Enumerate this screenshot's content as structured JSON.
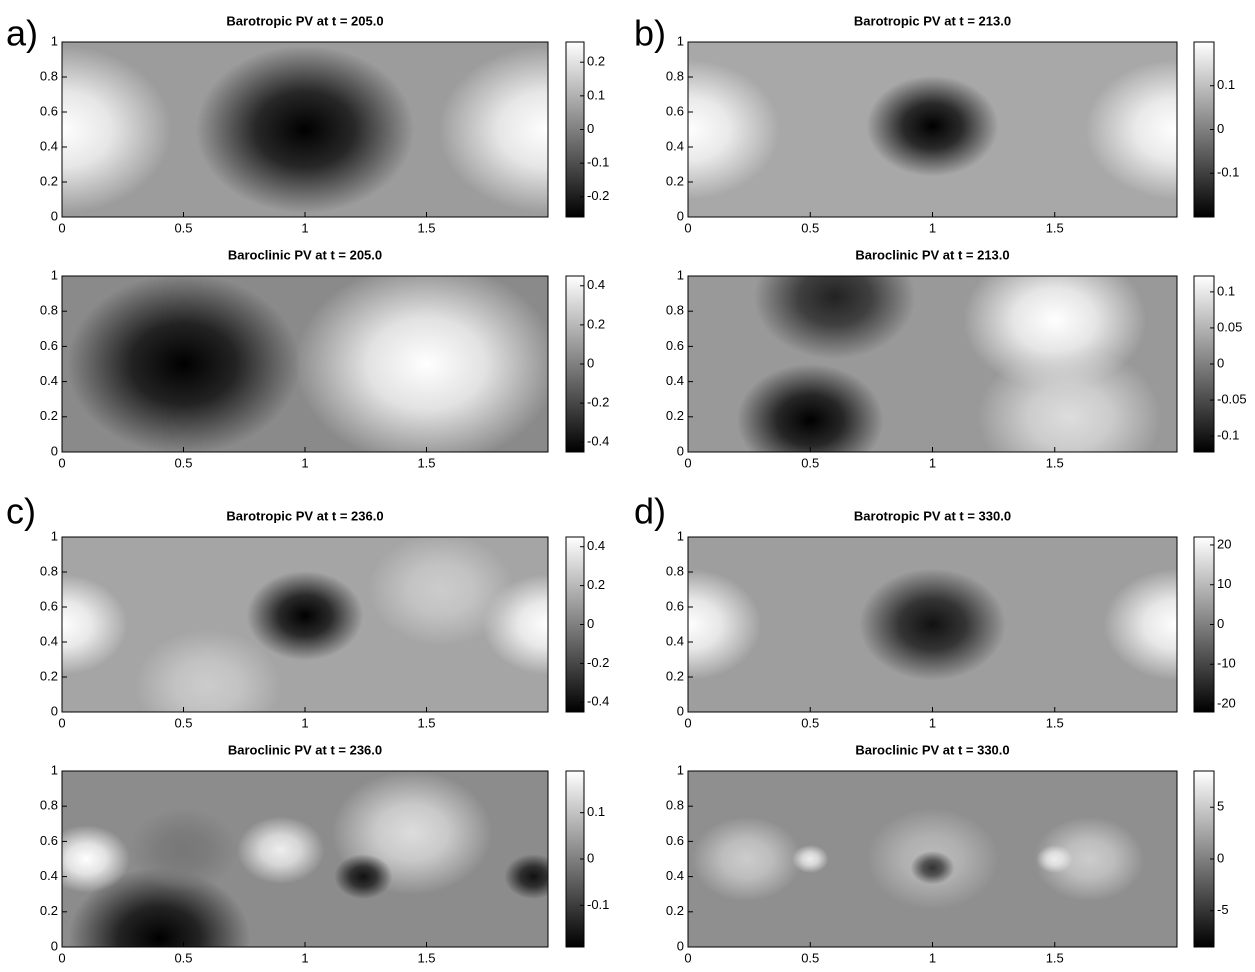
{
  "panel_labels": [
    "a)",
    "b)",
    "c)",
    "d)"
  ],
  "chart_data": [
    {
      "type": "heatmap",
      "title": "Barotropic PV at t = 205.0",
      "xlim": [
        0,
        2
      ],
      "ylim": [
        0,
        1
      ],
      "xticks": [
        0,
        0.5,
        1,
        1.5
      ],
      "yticks": [
        0,
        0.2,
        0.4,
        0.6,
        0.8,
        1
      ],
      "clim": [
        -0.26,
        0.26
      ],
      "cticks": [
        0.2,
        0.1,
        0,
        -0.1,
        -0.2
      ]
    },
    {
      "type": "heatmap",
      "title": "Baroclinic PV at t = 205.0",
      "xlim": [
        0,
        2
      ],
      "ylim": [
        0,
        1
      ],
      "xticks": [
        0,
        0.5,
        1,
        1.5
      ],
      "yticks": [
        0,
        0.2,
        0.4,
        0.6,
        0.8,
        1
      ],
      "clim": [
        -0.45,
        0.45
      ],
      "cticks": [
        0.4,
        0.2,
        0,
        -0.2,
        -0.4
      ]
    },
    {
      "type": "heatmap",
      "title": "Barotropic PV at t = 213.0",
      "xlim": [
        0,
        2
      ],
      "ylim": [
        0,
        1
      ],
      "xticks": [
        0,
        0.5,
        1,
        1.5
      ],
      "yticks": [
        0,
        0.2,
        0.4,
        0.6,
        0.8,
        1
      ],
      "clim": [
        -0.2,
        0.2
      ],
      "cticks": [
        0.1,
        0,
        -0.1
      ]
    },
    {
      "type": "heatmap",
      "title": "Baroclinic PV at t = 213.0",
      "xlim": [
        0,
        2
      ],
      "ylim": [
        0,
        1
      ],
      "xticks": [
        0,
        0.5,
        1,
        1.5
      ],
      "yticks": [
        0,
        0.2,
        0.4,
        0.6,
        0.8,
        1
      ],
      "clim": [
        -0.122,
        0.122
      ],
      "cticks": [
        0.1,
        0.05,
        0,
        -0.05,
        -0.1
      ]
    },
    {
      "type": "heatmap",
      "title": "Barotropic PV at t = 236.0",
      "xlim": [
        0,
        2
      ],
      "ylim": [
        0,
        1
      ],
      "xticks": [
        0,
        0.5,
        1,
        1.5
      ],
      "yticks": [
        0,
        0.2,
        0.4,
        0.6,
        0.8,
        1
      ],
      "clim": [
        -0.45,
        0.45
      ],
      "cticks": [
        0.4,
        0.2,
        0,
        -0.2,
        -0.4
      ]
    },
    {
      "type": "heatmap",
      "title": "Baroclinic PV at t = 236.0",
      "xlim": [
        0,
        2
      ],
      "ylim": [
        0,
        1
      ],
      "xticks": [
        0,
        0.5,
        1,
        1.5
      ],
      "yticks": [
        0,
        0.2,
        0.4,
        0.6,
        0.8,
        1
      ],
      "clim": [
        -0.19,
        0.19
      ],
      "cticks": [
        0.1,
        0,
        -0.1
      ]
    },
    {
      "type": "heatmap",
      "title": "Barotropic PV at t = 330.0",
      "xlim": [
        0,
        2
      ],
      "ylim": [
        0,
        1
      ],
      "xticks": [
        0,
        0.5,
        1,
        1.5
      ],
      "yticks": [
        0,
        0.2,
        0.4,
        0.6,
        0.8,
        1
      ],
      "clim": [
        -22,
        22
      ],
      "cticks": [
        20,
        10,
        0,
        -10,
        -20
      ]
    },
    {
      "type": "heatmap",
      "title": "Baroclinic PV at t = 330.0",
      "xlim": [
        0,
        2
      ],
      "ylim": [
        0,
        1
      ],
      "xticks": [
        0,
        0.5,
        1,
        1.5
      ],
      "yticks": [
        0,
        0.2,
        0.4,
        0.6,
        0.8,
        1
      ],
      "clim": [
        -8.5,
        8.5
      ],
      "cticks": [
        5,
        0,
        -5
      ]
    }
  ]
}
